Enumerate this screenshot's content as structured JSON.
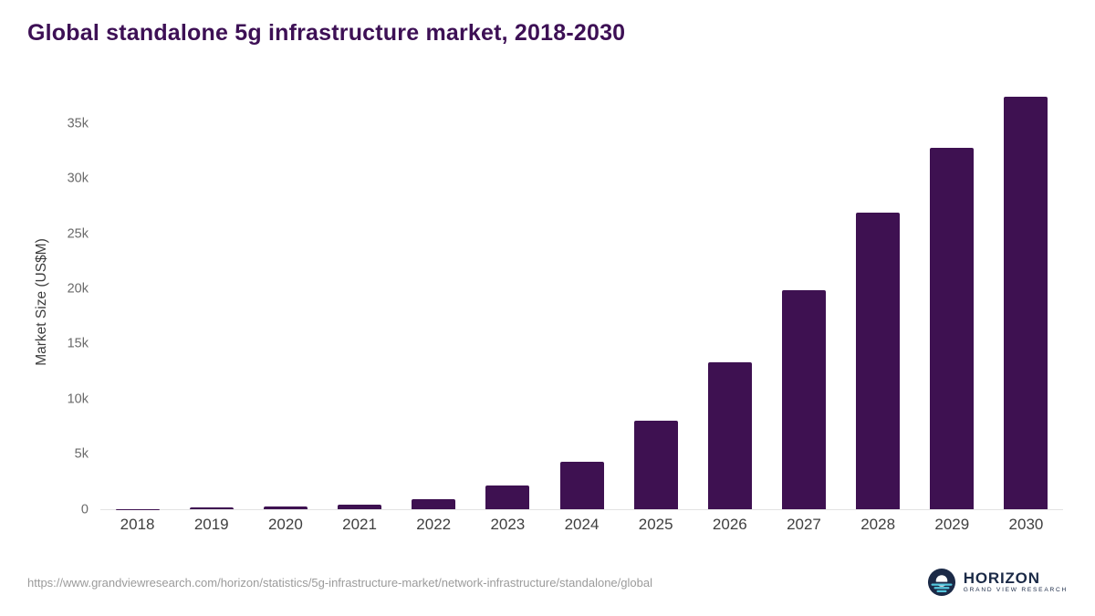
{
  "title": "Global standalone 5g infrastructure market, 2018-2030",
  "chart_data": {
    "type": "bar",
    "title": "Global standalone 5g infrastructure market, 2018-2030",
    "categories": [
      "2018",
      "2019",
      "2020",
      "2021",
      "2022",
      "2023",
      "2024",
      "2025",
      "2026",
      "2027",
      "2028",
      "2029",
      "2030"
    ],
    "values": [
      30,
      130,
      230,
      420,
      900,
      2150,
      4300,
      8000,
      13350,
      19900,
      26900,
      32800,
      37400
    ],
    "xlabel": "",
    "ylabel": "Market Size (US$M)",
    "ylim": [
      0,
      37500
    ],
    "yticks": [
      {
        "value": 0,
        "label": "0"
      },
      {
        "value": 5000,
        "label": "5k"
      },
      {
        "value": 10000,
        "label": "10k"
      },
      {
        "value": 15000,
        "label": "15k"
      },
      {
        "value": 20000,
        "label": "20k"
      },
      {
        "value": 25000,
        "label": "25k"
      },
      {
        "value": 30000,
        "label": "30k"
      },
      {
        "value": 35000,
        "label": "35k"
      }
    ],
    "grid": false,
    "legend": "none",
    "bar_color": "#3e1151"
  },
  "footer": {
    "source_url": "https://www.grandviewresearch.com/horizon/statistics/5g-infrastructure-market/network-infrastructure/standalone/global",
    "logo": {
      "name": "HORIZON",
      "subtitle": "GRAND VIEW RESEARCH"
    }
  },
  "colors": {
    "bar": "#3e1151",
    "title": "#3d1055",
    "axis_label": "#3c3c3c",
    "tick_label": "#6a6a6a",
    "x_label": "#3f3f3f",
    "source": "#9b9b9b",
    "baseline": "#e3e3e3",
    "logo_navy": "#1b2a47",
    "logo_teal": "#55c7de"
  }
}
